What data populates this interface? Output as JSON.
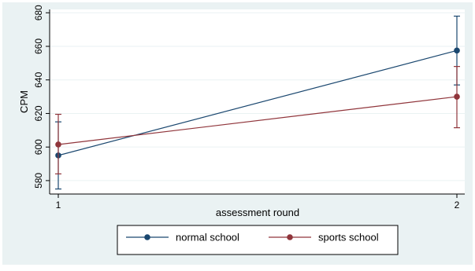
{
  "chart_data": {
    "type": "line",
    "x_categories": [
      "1",
      "2"
    ],
    "xlabel": "assessment round",
    "ylabel": "CPM",
    "ylim": [
      572,
      682
    ],
    "y_ticks": [
      580,
      600,
      620,
      640,
      660,
      680
    ],
    "grid": "horizontal",
    "legend_position": "bottom",
    "series": [
      {
        "name": "normal school",
        "color": "#1a476f",
        "values": [
          595,
          657.5
        ],
        "ci_low": [
          575,
          637
        ],
        "ci_high": [
          615,
          678
        ]
      },
      {
        "name": "sports school",
        "color": "#90353b",
        "values": [
          601.5,
          630
        ],
        "ci_low": [
          584,
          611.5
        ],
        "ci_high": [
          619.5,
          648
        ]
      }
    ]
  }
}
